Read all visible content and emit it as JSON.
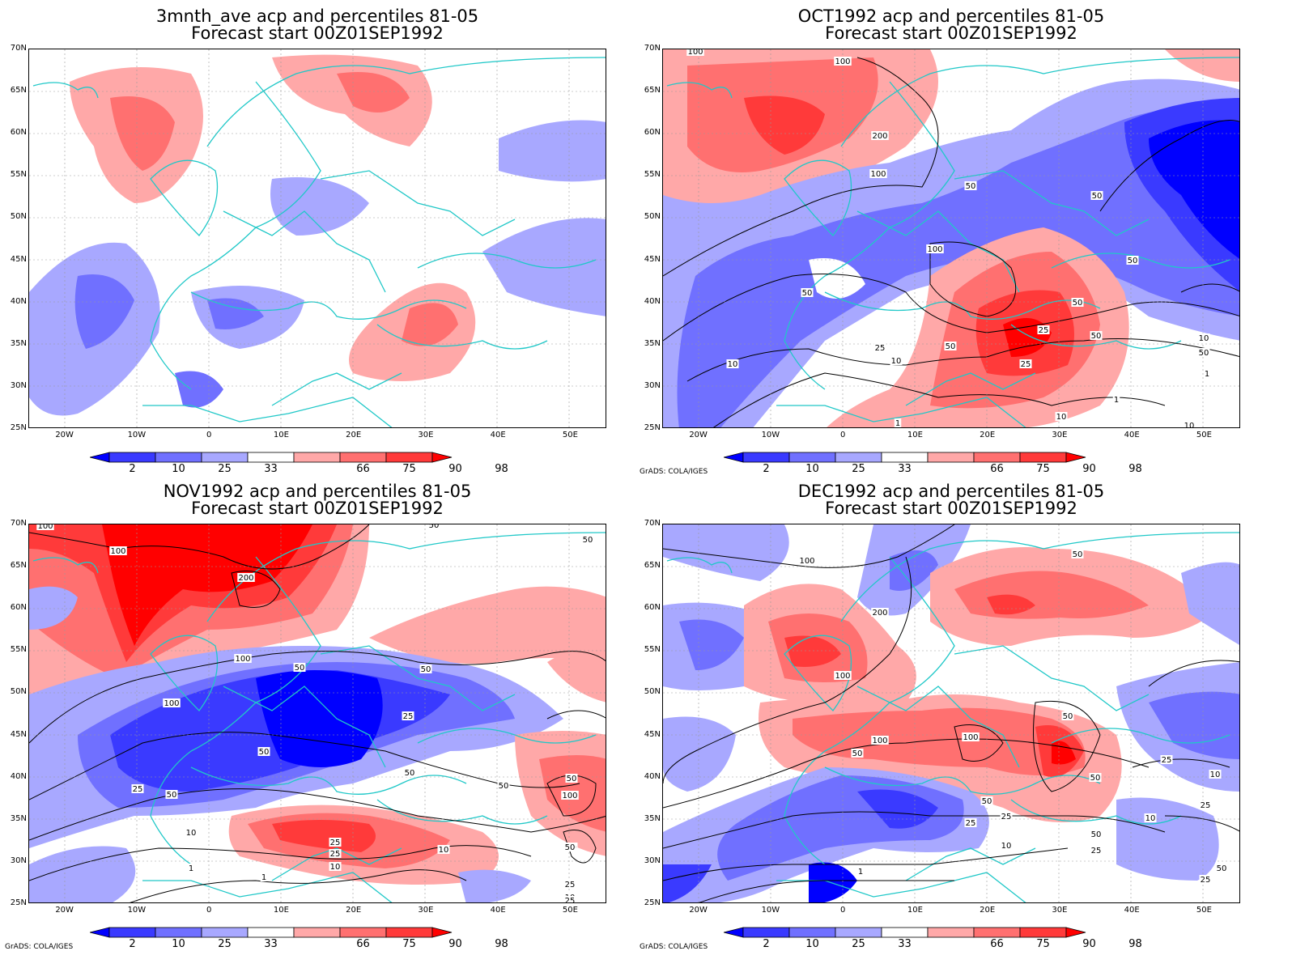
{
  "panels": [
    {
      "id": "3mnth",
      "title_line1": "3mnth_ave acp and percentiles 81-05",
      "title_line2": "Forecast start 00Z01SEP1992",
      "has_contours": false,
      "grads_label": ""
    },
    {
      "id": "oct",
      "title_line1": "OCT1992 acp and percentiles 81-05",
      "title_line2": "Forecast start 00Z01SEP1992",
      "has_contours": true,
      "grads_label": "GrADS: COLA/IGES",
      "contour_labels": [
        "100",
        "100",
        "200",
        "100",
        "50",
        "50",
        "100",
        "50",
        "50",
        "50",
        "50",
        "25",
        "50",
        "10",
        "25",
        "10",
        "50",
        "25",
        "10",
        "1",
        "1",
        "10",
        "1",
        "10"
      ]
    },
    {
      "id": "nov",
      "title_line1": "NOV1992 acp and percentiles 81-05",
      "title_line2": "Forecast start 00Z01SEP1992",
      "has_contours": true,
      "grads_label": "GrADS: COLA/IGES",
      "contour_labels": [
        "100",
        "100",
        "200",
        "50",
        "50",
        "100",
        "50",
        "100",
        "50",
        "25",
        "50",
        "25",
        "50",
        "50",
        "50",
        "50",
        "100",
        "10",
        "50",
        "25",
        "25",
        "10",
        "10",
        "1",
        "1",
        "50",
        "25",
        "10",
        "25"
      ]
    },
    {
      "id": "dec",
      "title_line1": "DEC1992 acp and percentiles 81-05",
      "title_line2": "Forecast start 00Z01SEP1992",
      "has_contours": true,
      "grads_label": "GrADS: COLA/IGES",
      "contour_labels": [
        "100",
        "50",
        "200",
        "100",
        "100",
        "50",
        "100",
        "50",
        "25",
        "25",
        "50",
        "50",
        "25",
        "10",
        "10",
        "1",
        "50",
        "10",
        "25",
        "25",
        "50",
        "25"
      ]
    }
  ],
  "axes": {
    "lat_labels": [
      "70N",
      "65N",
      "60N",
      "55N",
      "50N",
      "45N",
      "40N",
      "35N",
      "30N",
      "25N"
    ],
    "lon_labels": [
      "20W",
      "10W",
      "0",
      "10E",
      "20E",
      "30E",
      "40E",
      "50E"
    ]
  },
  "colorbar": {
    "labels": [
      "2",
      "10",
      "25",
      "33",
      "66",
      "75",
      "90",
      "98"
    ],
    "colors": [
      "#0000ff",
      "#3a3aff",
      "#7070ff",
      "#a8a8ff",
      "#ffffff",
      "#ffa8a8",
      "#ff7070",
      "#ff3a3a",
      "#ff0000"
    ]
  },
  "colors": {
    "coast": "#20c8c8",
    "contour": "#000000",
    "grid": "#999999"
  }
}
